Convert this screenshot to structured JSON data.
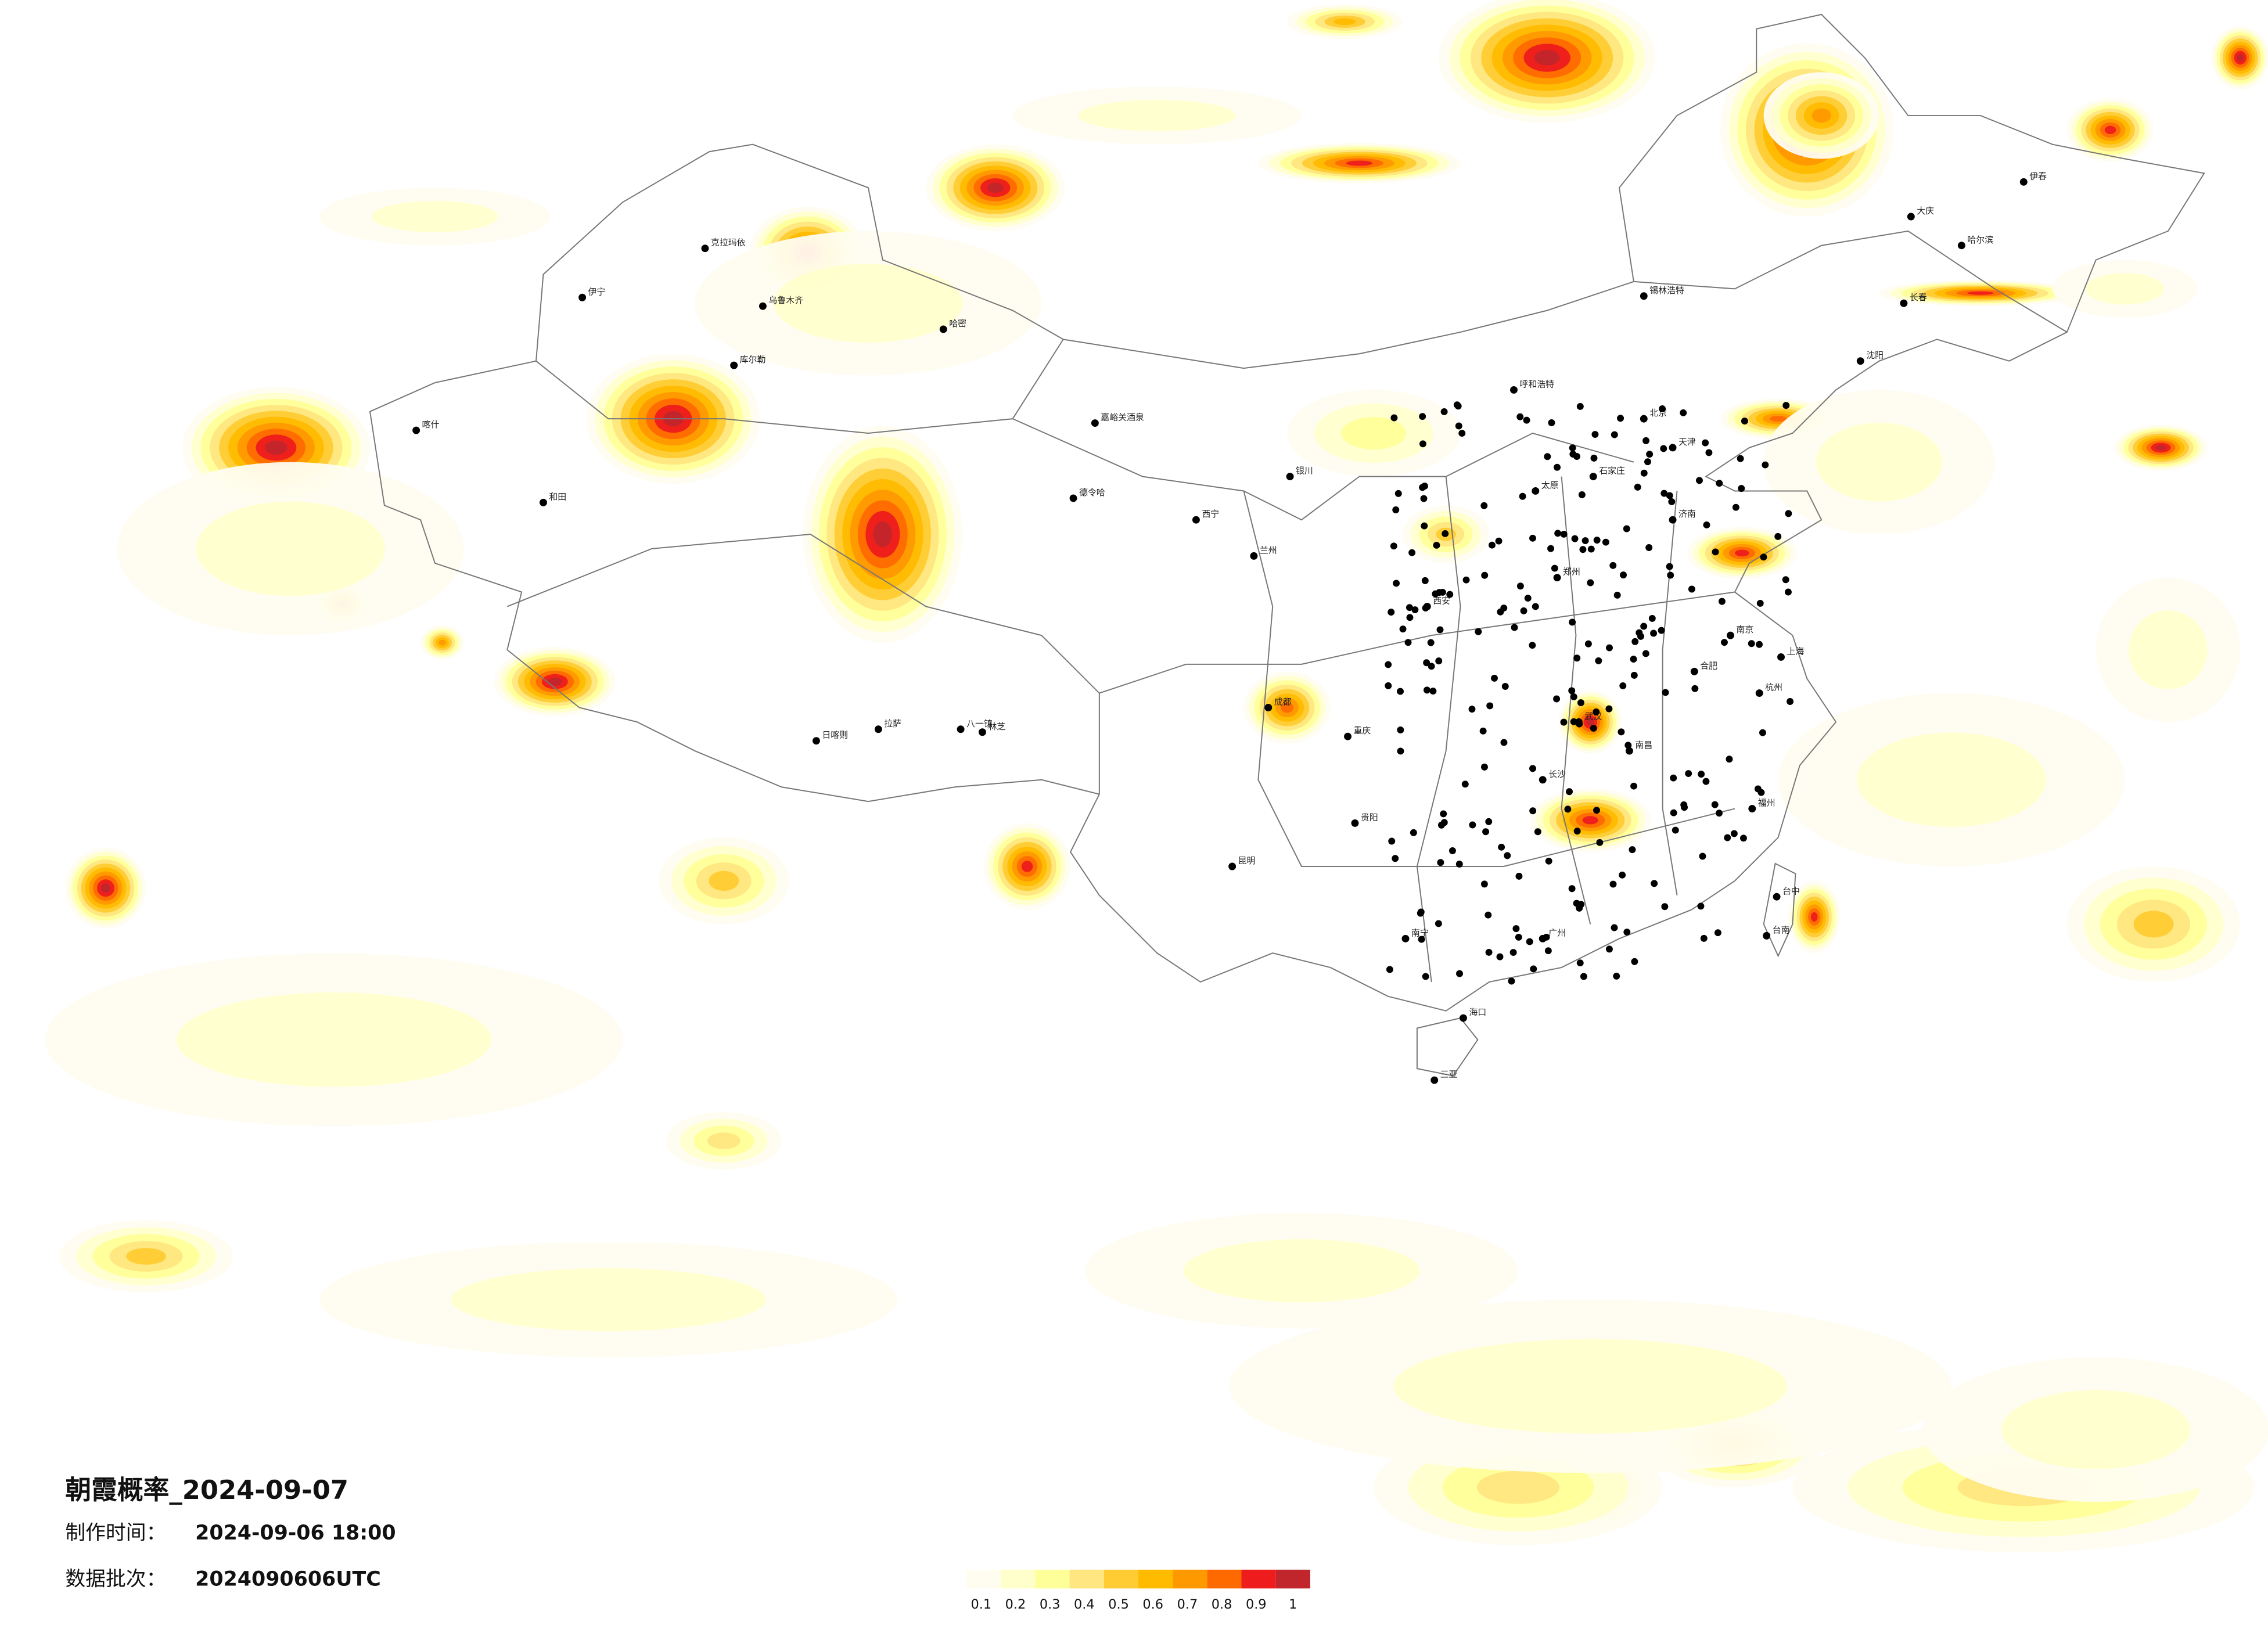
{
  "header": {
    "title": "朝霞概率_2024-09-07",
    "made_label": "制作时间：",
    "made_value": "2024-09-06 18:00",
    "batch_label": "数据批次：",
    "batch_value": "2024090606UTC"
  },
  "legend": {
    "labels": [
      "0.1",
      "0.2",
      "0.3",
      "0.4",
      "0.5",
      "0.6",
      "0.7",
      "0.8",
      "0.9",
      "1"
    ],
    "colors": [
      "#fffdf0",
      "#ffffcc",
      "#ffff99",
      "#ffe680",
      "#ffcc33",
      "#ffbb00",
      "#ff9900",
      "#ff6a00",
      "#ee1c1c",
      "#c0262b"
    ]
  },
  "cities": [
    "克拉玛依",
    "乌鲁木齐",
    "库尔勒",
    "和田",
    "喀什",
    "伊宁",
    "哈密",
    "日喀则",
    "拉萨",
    "八一镇",
    "林芝",
    "嘉峪关酒泉",
    "德令哈",
    "西宁",
    "兰州",
    "银川",
    "呼和浩特",
    "北京",
    "天津",
    "石家庄",
    "太原",
    "西安",
    "郑州",
    "济南",
    "南京",
    "上海",
    "杭州",
    "合肥",
    "武汉",
    "长沙",
    "南昌",
    "福州",
    "广州",
    "南宁",
    "海口",
    "三亚",
    "贵阳",
    "昆明",
    "成都",
    "重庆",
    "沈阳",
    "长春",
    "哈尔滨",
    "大庆",
    "伊春",
    "台中",
    "台南",
    "锡林浩特"
  ]
}
